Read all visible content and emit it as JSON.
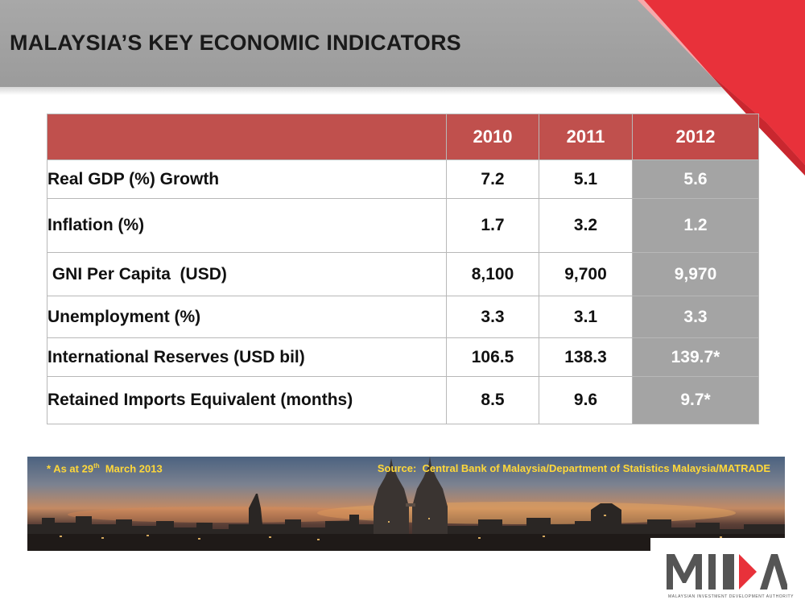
{
  "title": "MALAYSIA’S KEY ECONOMIC INDICATORS",
  "table": {
    "columns": [
      "2010",
      "2011",
      "2012"
    ],
    "rows": [
      {
        "label": "Real GDP (%) Growth",
        "values": [
          "7.2",
          "5.1",
          "5.6"
        ]
      },
      {
        "label": "Inflation (%)",
        "values": [
          "1.7",
          "3.2",
          "1.2"
        ]
      },
      {
        "label": " GNI Per Capita  (USD)",
        "values": [
          "8,100",
          "9,700",
          "9,970"
        ]
      },
      {
        "label": "Unemployment (%)",
        "values": [
          "3.3",
          "3.1",
          "3.3"
        ]
      },
      {
        "label": "International Reserves (USD bil)",
        "values": [
          "106.5",
          "138.3",
          "139.7*"
        ]
      },
      {
        "label": "Retained Imports Equivalent (months)",
        "values": [
          "8.5",
          "9.6",
          "9.7*"
        ]
      }
    ]
  },
  "footnote": {
    "prefix": "* As at 29",
    "sup": "th",
    "suffix": "  March 2013"
  },
  "source": "Source:  Central Bank of Malaysia/Department of Statistics Malaysia/MATRADE",
  "logo": {
    "text": "MIDA",
    "tagline": "MALAYSIAN INVESTMENT DEVELOPMENT AUTHORITY"
  },
  "colors": {
    "header_gray": "#a8a8a8",
    "accent_red": "#e8313a",
    "table_header": "#c0504d",
    "highlight_gray": "#a4a4a4",
    "note_yellow": "#ffd83a"
  }
}
